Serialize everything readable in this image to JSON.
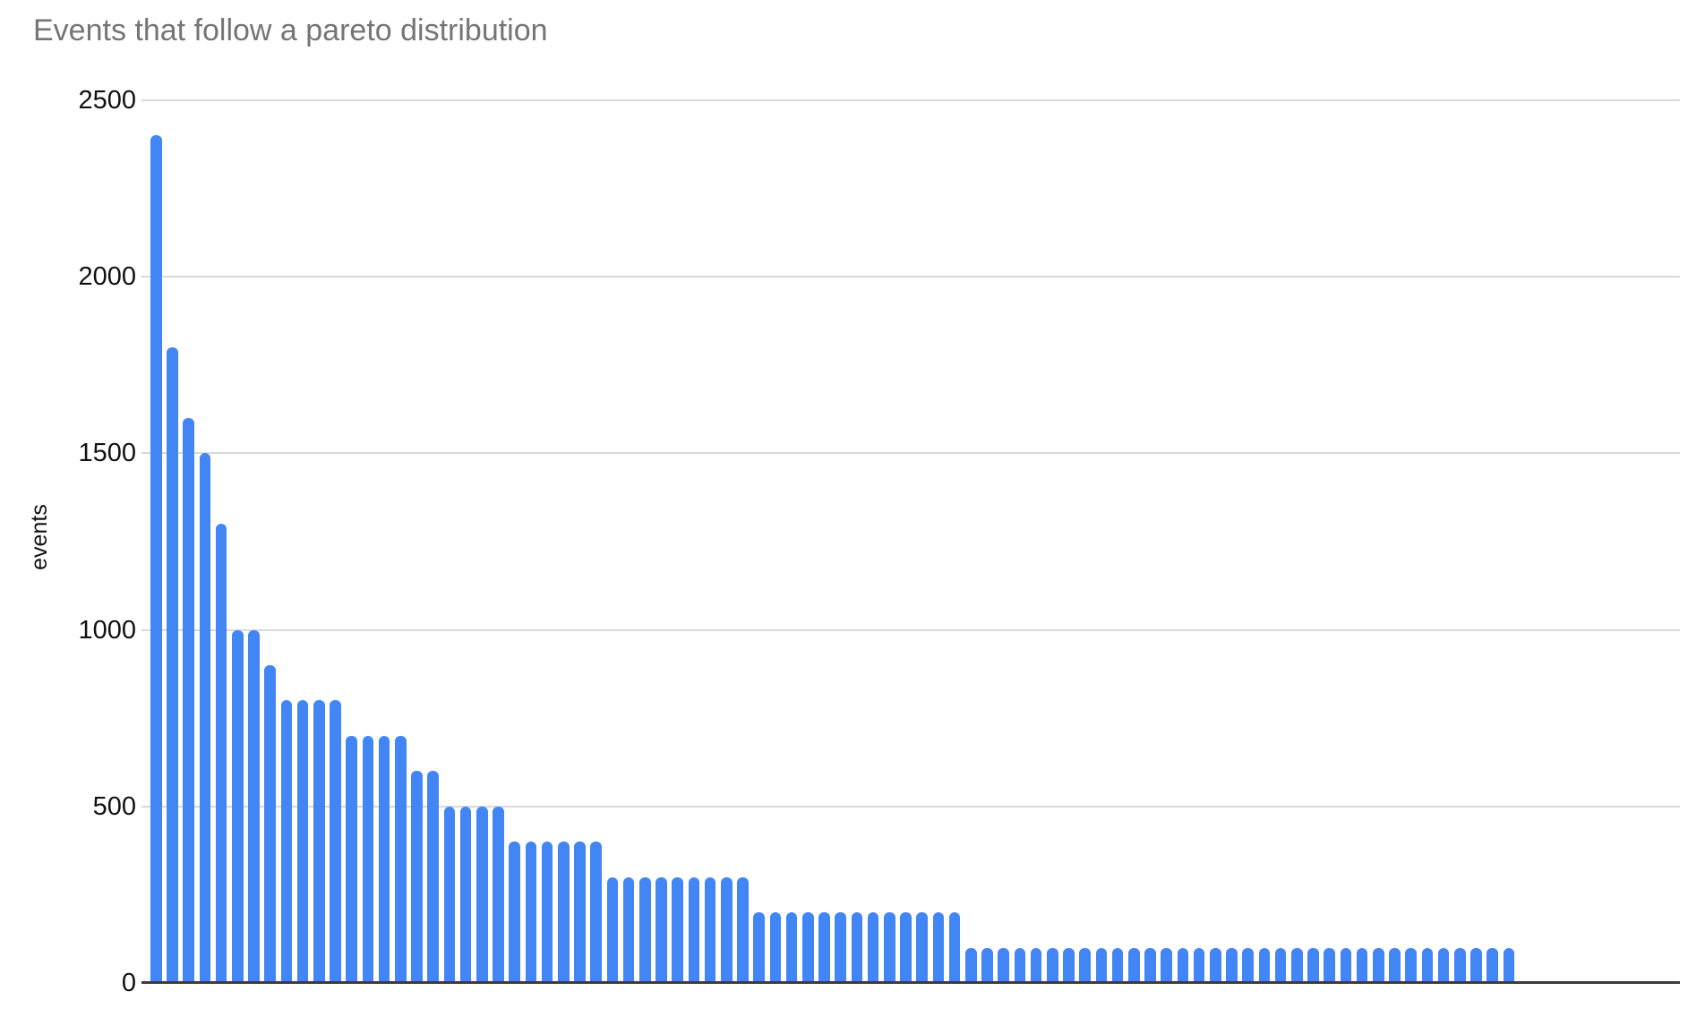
{
  "chart_data": {
    "type": "bar",
    "title": "Events that follow a pareto distribution",
    "xlabel": "",
    "ylabel": "events",
    "ylim": [
      0,
      2500
    ],
    "yticks": [
      0,
      500,
      1000,
      1500,
      2000,
      2500
    ],
    "x_tick_labels": [],
    "grid": true,
    "legend": "none",
    "bar_count": 84,
    "values": [
      2400,
      1800,
      1600,
      1500,
      1300,
      1000,
      1000,
      900,
      800,
      800,
      800,
      800,
      700,
      700,
      700,
      700,
      600,
      600,
      500,
      500,
      500,
      500,
      400,
      400,
      400,
      400,
      400,
      400,
      300,
      300,
      300,
      300,
      300,
      300,
      300,
      300,
      300,
      200,
      200,
      200,
      200,
      200,
      200,
      200,
      200,
      200,
      200,
      200,
      200,
      200,
      100,
      100,
      100,
      100,
      100,
      100,
      100,
      100,
      100,
      100,
      100,
      100,
      100,
      100,
      100,
      100,
      100,
      100,
      100,
      100,
      100,
      100,
      100,
      100,
      100,
      100,
      100,
      100,
      100,
      100,
      100,
      100,
      100,
      100
    ]
  },
  "colors": {
    "bar": "#4285f4",
    "gridline": "#d9d9d9",
    "axis_line": "#3c3c3c",
    "title_text": "#757575",
    "tick_text": "#111111"
  }
}
